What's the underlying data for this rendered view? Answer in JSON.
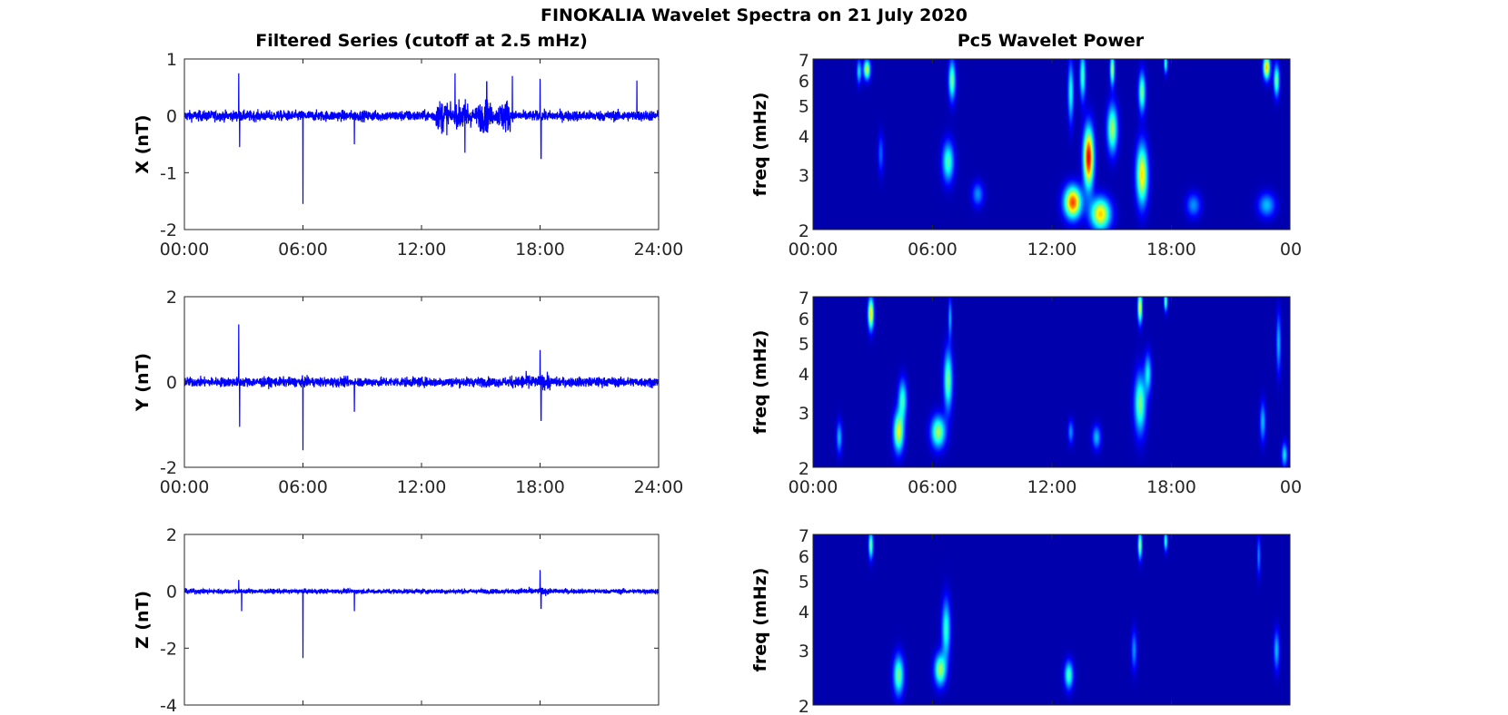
{
  "chart_data": {
    "type": "line+heatmap",
    "title": "FINOKALIA Wavelet Spectra on 21 July 2020",
    "left_title": "Filtered Series (cutoff at 2.5 mHz)",
    "right_title": "Pc5 Wavelet Power",
    "x_ticks": [
      "00:00",
      "06:00",
      "12:00",
      "18:00",
      "24:00"
    ],
    "right_x_ticks": [
      "00:00",
      "06:00",
      "12:00",
      "18:00",
      "00"
    ],
    "xlim_hours": [
      0,
      24
    ],
    "freq_ylabel": "freq (mHz)",
    "freq_ticks": [
      2,
      3,
      4,
      5,
      6,
      7
    ],
    "freq_ylim": [
      2,
      7
    ],
    "series": [
      {
        "name": "X",
        "ylabel": "X (nT)",
        "ylim": [
          -2,
          1
        ],
        "yticks": [
          1,
          0,
          -1,
          -2
        ],
        "noise": 0.09,
        "burst": [
          12.5,
          16.5,
          0.2
        ],
        "spikes": [
          [
            2.75,
            0.75
          ],
          [
            2.8,
            -0.55
          ],
          [
            6.0,
            -1.55
          ],
          [
            8.6,
            -0.5
          ],
          [
            13.7,
            0.75
          ],
          [
            14.2,
            -0.65
          ],
          [
            15.3,
            0.6
          ],
          [
            16.6,
            0.7
          ],
          [
            18.0,
            0.65
          ],
          [
            18.05,
            -0.75
          ],
          [
            22.9,
            0.62
          ]
        ],
        "show_xticks": true,
        "blobs": [
          [
            2.7,
            6.5,
            0.12,
            0.05,
            0.6
          ],
          [
            2.3,
            6.4,
            0.08,
            0.06,
            0.35
          ],
          [
            7.0,
            6.0,
            0.12,
            0.1,
            0.5
          ],
          [
            6.8,
            3.3,
            0.2,
            0.1,
            0.45
          ],
          [
            13.1,
            2.45,
            0.3,
            0.08,
            0.85
          ],
          [
            13.9,
            3.4,
            0.18,
            0.15,
            0.95
          ],
          [
            14.5,
            2.25,
            0.35,
            0.08,
            0.7
          ],
          [
            13.0,
            5.5,
            0.1,
            0.15,
            0.4
          ],
          [
            13.6,
            6.2,
            0.1,
            0.12,
            0.45
          ],
          [
            15.1,
            4.2,
            0.18,
            0.12,
            0.55
          ],
          [
            15.1,
            6.5,
            0.08,
            0.08,
            0.55
          ],
          [
            16.6,
            3.0,
            0.2,
            0.15,
            0.68
          ],
          [
            16.6,
            5.5,
            0.12,
            0.1,
            0.5
          ],
          [
            17.8,
            6.8,
            0.06,
            0.05,
            0.45
          ],
          [
            22.9,
            6.6,
            0.12,
            0.06,
            0.72
          ],
          [
            23.4,
            6.0,
            0.1,
            0.08,
            0.5
          ],
          [
            22.9,
            2.4,
            0.3,
            0.06,
            0.3
          ],
          [
            19.2,
            2.4,
            0.25,
            0.06,
            0.25
          ],
          [
            8.3,
            2.6,
            0.2,
            0.06,
            0.25
          ],
          [
            3.4,
            3.5,
            0.1,
            0.1,
            0.2
          ]
        ]
      },
      {
        "name": "Y",
        "ylabel": "Y (nT)",
        "ylim": [
          -2,
          2
        ],
        "yticks": [
          2,
          0,
          -2
        ],
        "noise": 0.11,
        "burst": [
          16.5,
          18.5,
          0.08
        ],
        "spikes": [
          [
            2.75,
            1.35
          ],
          [
            2.8,
            -1.05
          ],
          [
            6.0,
            -1.6
          ],
          [
            8.6,
            -0.7
          ],
          [
            18.0,
            0.75
          ],
          [
            18.05,
            -0.9
          ]
        ],
        "show_xticks": true,
        "blobs": [
          [
            2.9,
            6.2,
            0.1,
            0.08,
            0.7
          ],
          [
            4.3,
            2.6,
            0.18,
            0.1,
            0.62
          ],
          [
            4.5,
            3.3,
            0.15,
            0.1,
            0.42
          ],
          [
            6.3,
            2.6,
            0.25,
            0.08,
            0.55
          ],
          [
            6.8,
            3.8,
            0.15,
            0.15,
            0.5
          ],
          [
            6.9,
            6.0,
            0.06,
            0.1,
            0.3
          ],
          [
            1.3,
            2.5,
            0.1,
            0.08,
            0.3
          ],
          [
            16.5,
            6.5,
            0.08,
            0.08,
            0.65
          ],
          [
            16.5,
            3.2,
            0.2,
            0.15,
            0.5
          ],
          [
            16.9,
            4.0,
            0.12,
            0.1,
            0.35
          ],
          [
            17.8,
            6.8,
            0.06,
            0.05,
            0.5
          ],
          [
            14.3,
            2.5,
            0.15,
            0.06,
            0.3
          ],
          [
            13.0,
            2.6,
            0.1,
            0.06,
            0.25
          ],
          [
            22.7,
            2.8,
            0.1,
            0.1,
            0.3
          ],
          [
            23.5,
            5.0,
            0.08,
            0.15,
            0.3
          ],
          [
            23.8,
            2.2,
            0.1,
            0.06,
            0.35
          ]
        ]
      },
      {
        "name": "Z",
        "ylabel": "Z (nT)",
        "ylim": [
          -4,
          2
        ],
        "yticks": [
          2,
          0,
          -2,
          -4
        ],
        "noise": 0.08,
        "burst": [
          17,
          18.5,
          0.05
        ],
        "spikes": [
          [
            2.75,
            0.4
          ],
          [
            2.9,
            -0.7
          ],
          [
            6.0,
            -2.35
          ],
          [
            8.6,
            -0.7
          ],
          [
            18.0,
            0.75
          ],
          [
            18.05,
            -0.6
          ]
        ],
        "show_xticks": false,
        "blobs": [
          [
            2.9,
            6.5,
            0.08,
            0.07,
            0.5
          ],
          [
            4.3,
            2.5,
            0.18,
            0.1,
            0.5
          ],
          [
            6.4,
            2.6,
            0.2,
            0.08,
            0.55
          ],
          [
            6.7,
            3.5,
            0.15,
            0.15,
            0.42
          ],
          [
            12.9,
            2.5,
            0.15,
            0.07,
            0.45
          ],
          [
            16.5,
            6.5,
            0.07,
            0.07,
            0.55
          ],
          [
            17.8,
            6.7,
            0.06,
            0.05,
            0.45
          ],
          [
            16.2,
            3.0,
            0.1,
            0.1,
            0.25
          ],
          [
            22.5,
            6.0,
            0.06,
            0.1,
            0.25
          ],
          [
            23.4,
            3.0,
            0.1,
            0.1,
            0.3
          ]
        ]
      }
    ]
  }
}
